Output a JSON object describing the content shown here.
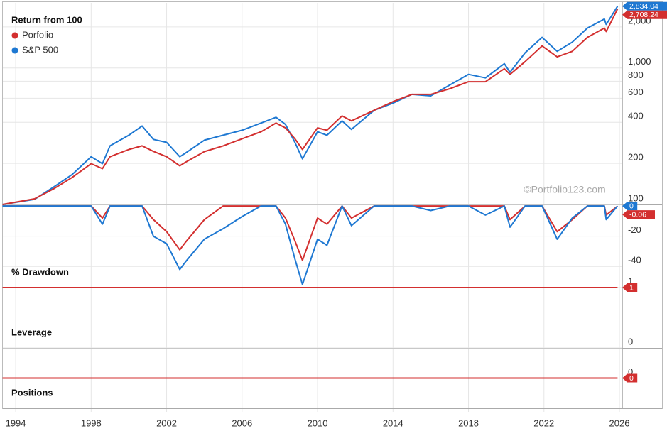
{
  "chart_data": [
    {
      "type": "line",
      "title": "Return from 100",
      "log_scale": true,
      "grid": true,
      "legend": "top-left",
      "watermark": "©Portfolio123.com",
      "xlim": [
        1993.32,
        2026.15
      ],
      "x": [
        1993.3,
        1995,
        1996,
        1997,
        1998,
        1998.6,
        1999,
        2000,
        2000.7,
        2001.3,
        2002,
        2002.7,
        2003,
        2004,
        2005,
        2006,
        2007,
        2007.8,
        2008.3,
        2008.8,
        2009.2,
        2010,
        2010.5,
        2011.3,
        2011.8,
        2013,
        2014,
        2015,
        2016,
        2017,
        2018,
        2018.9,
        2019.9,
        2020.2,
        2021,
        2021.9,
        2022.7,
        2023.5,
        2024.3,
        2025.2,
        2025.3,
        2025.9
      ],
      "ylim": [
        100,
        3000
      ],
      "yticks": [
        100,
        200,
        400,
        600,
        800,
        {
          "value": 1000,
          "label": "1,000"
        },
        {
          "value": 2000,
          "label": "2,000"
        }
      ],
      "series": [
        {
          "name": "Porfolio",
          "color": "#d32f2f",
          "values": [
            100,
            110,
            130,
            158,
            199,
            183,
            224,
            253,
            269,
            245,
            224,
            192,
            204,
            244,
            269,
            303,
            341,
            395,
            364,
            303,
            253,
            364,
            350,
            446,
            410,
            490,
            567,
            641,
            641,
            704,
            793,
            793,
            987,
            898,
            1113,
            1450,
            1206,
            1324,
            1677,
            1960,
            1850,
            2708.24
          ],
          "value_labels": [
            null,
            null,
            null,
            null,
            null,
            null,
            null,
            null,
            null,
            null,
            null,
            null,
            null,
            null,
            null,
            null,
            null,
            null,
            null,
            null,
            null,
            null,
            null,
            null,
            null,
            null,
            null,
            null,
            null,
            null,
            null,
            null,
            null,
            null,
            null,
            null,
            null,
            null,
            null,
            null,
            null,
            "2,708.24"
          ]
        },
        {
          "name": "S&P 500",
          "color": "#1e78d2",
          "values": [
            100,
            109,
            134,
            166,
            224,
            199,
            269,
            322,
            376,
            300,
            285,
            224,
            238,
            296,
            322,
            350,
            395,
            435,
            386,
            285,
            216,
            341,
            322,
            410,
            355,
            490,
            553,
            641,
            625,
            750,
            898,
            846,
            1075,
            930,
            1291,
            1677,
            1324,
            1547,
            1960,
            2285,
            2085,
            2834.04
          ],
          "value_labels": [
            null,
            null,
            null,
            null,
            null,
            null,
            null,
            null,
            null,
            null,
            null,
            null,
            null,
            null,
            null,
            null,
            null,
            null,
            null,
            null,
            null,
            null,
            null,
            null,
            null,
            null,
            null,
            null,
            null,
            null,
            null,
            null,
            null,
            null,
            null,
            null,
            null,
            null,
            null,
            null,
            null,
            "2,834.04"
          ]
        }
      ]
    },
    {
      "type": "line",
      "title": "% Drawdown",
      "grid": true,
      "xlim": [
        1993.32,
        2026.15
      ],
      "x": [
        1993.3,
        1995,
        1996,
        1997,
        1998,
        1998.6,
        1999,
        2000,
        2000.7,
        2001.3,
        2002,
        2002.7,
        2003,
        2004,
        2005,
        2006,
        2007,
        2007.8,
        2008.3,
        2008.8,
        2009.2,
        2010,
        2010.5,
        2011.3,
        2011.8,
        2013,
        2014,
        2015,
        2016,
        2017,
        2018,
        2018.9,
        2019.9,
        2020.2,
        2021,
        2021.9,
        2022.7,
        2023.5,
        2024.3,
        2025.2,
        2025.3,
        2025.9
      ],
      "ylim": [
        -54,
        1
      ],
      "yticks": [
        -40,
        -20
      ],
      "series": [
        {
          "color": "#1e78d2",
          "values": [
            0,
            0,
            0,
            0,
            0,
            -12,
            0,
            0,
            0,
            -20,
            -25,
            -42,
            -37,
            -22,
            -15,
            -7,
            0,
            0,
            -12,
            -35,
            -52,
            -22,
            -26,
            0,
            -13,
            0,
            0,
            0,
            -3,
            0,
            0,
            -6,
            0,
            -14,
            0,
            0,
            -22,
            -8,
            0,
            0,
            -9,
            0
          ]
        },
        {
          "color": "#d32f2f",
          "values": [
            0,
            0,
            0,
            0,
            0,
            -8,
            0,
            0,
            0,
            -9,
            -17,
            -29,
            -24,
            -9,
            0,
            0,
            0,
            0,
            -8,
            -23,
            -36,
            -8,
            -12,
            0,
            -8,
            0,
            0,
            0,
            0,
            0,
            0,
            0,
            0,
            -9,
            0,
            0,
            -17,
            -9,
            0,
            0,
            -6,
            -0.06
          ]
        }
      ]
    },
    {
      "type": "line",
      "title": "Leverage",
      "grid": true,
      "xlim": [
        1993.32,
        2026.15
      ],
      "x": [
        1993.3,
        2025.9
      ],
      "ylim": [
        0,
        1
      ],
      "yticks": [
        0,
        1
      ],
      "series": [
        {
          "color": "#d32f2f",
          "values": [
            1,
            1
          ]
        }
      ]
    },
    {
      "type": "line",
      "title": "Positions",
      "grid": true,
      "xlim": [
        1993.32,
        2026.15
      ],
      "x": [
        1993.3,
        2025.9
      ],
      "ylim": [
        -1,
        1
      ],
      "yticks": [
        0
      ],
      "xticks": [
        1994,
        1998,
        2002,
        2006,
        2010,
        2014,
        2018,
        2022,
        2026
      ],
      "series": [
        {
          "color": "#d32f2f",
          "values": [
            0,
            0
          ]
        }
      ]
    }
  ]
}
